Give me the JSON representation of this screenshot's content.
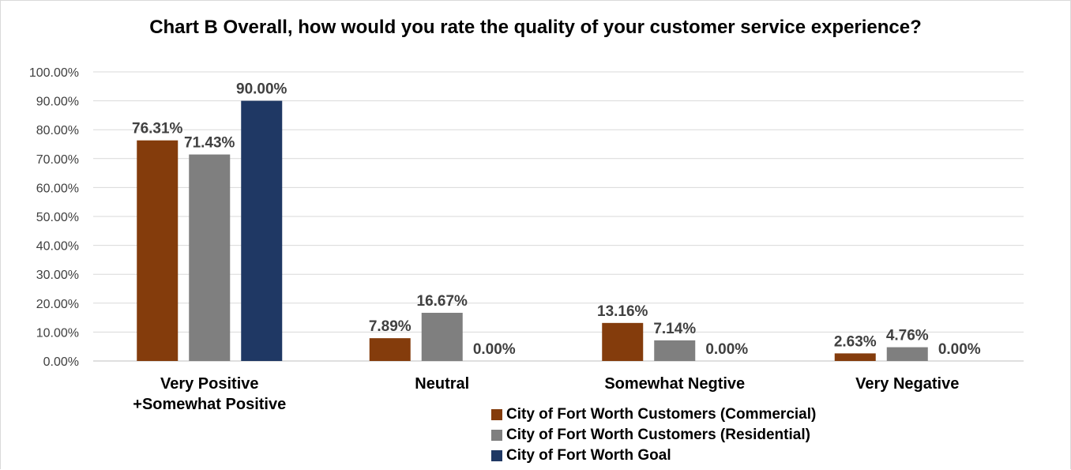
{
  "chart_data": {
    "type": "bar",
    "title": "Chart B Overall, how would you rate the quality of your customer service experience?",
    "categories": [
      "Very Positive +Somewhat Positive",
      "Neutral",
      "Somewhat Negtive",
      "Very Negative"
    ],
    "series": [
      {
        "name": "City of Fort Worth Customers (Commercial)",
        "color": "#843c0c",
        "values": [
          76.31,
          7.89,
          13.16,
          2.63
        ],
        "labels": [
          "76.31%",
          "7.89%",
          "13.16%",
          "2.63%"
        ]
      },
      {
        "name": "City of Fort Worth Customers (Residential)",
        "color": "#7f7f7f",
        "values": [
          71.43,
          16.67,
          7.14,
          4.76
        ],
        "labels": [
          "71.43%",
          "16.67%",
          "7.14%",
          "4.76%"
        ]
      },
      {
        "name": "City of Fort Worth Goal",
        "color": "#1f3864",
        "values": [
          90.0,
          0.0,
          0.0,
          0.0
        ],
        "labels": [
          "90.00%",
          "0.00%",
          "0.00%",
          "0.00%"
        ]
      }
    ],
    "ylim": [
      0,
      100
    ],
    "yticks": [
      "0.00%",
      "10.00%",
      "20.00%",
      "30.00%",
      "40.00%",
      "50.00%",
      "60.00%",
      "70.00%",
      "80.00%",
      "90.00%",
      "100.00%"
    ],
    "grid": true,
    "legend_position": "bottom"
  }
}
